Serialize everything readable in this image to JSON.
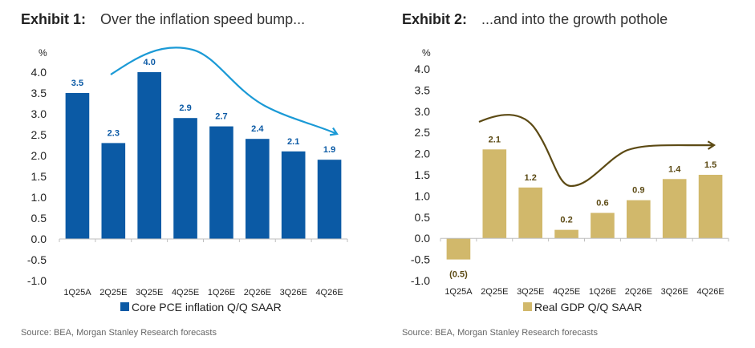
{
  "chart_data": [
    {
      "type": "bar",
      "exhibit": "Exhibit 1:",
      "title": "Over the inflation speed bump...",
      "ylabel": "%",
      "categories": [
        "1Q25A",
        "2Q25E",
        "3Q25E",
        "4Q25E",
        "1Q26E",
        "2Q26E",
        "3Q26E",
        "4Q26E"
      ],
      "series": [
        {
          "name": "Core PCE inflation Q/Q SAAR",
          "values": [
            3.5,
            2.3,
            4.0,
            2.9,
            2.7,
            2.4,
            2.1,
            1.9
          ],
          "color": "#0b5aa5"
        }
      ],
      "data_labels": [
        "3.5",
        "2.3",
        "4.0",
        "2.9",
        "2.7",
        "2.4",
        "2.1",
        "1.9"
      ],
      "label_color": "#0b5aa5",
      "ylim": [
        -1.0,
        4.0
      ],
      "yticks": [
        "4.0",
        "3.5",
        "3.0",
        "2.5",
        "2.0",
        "1.5",
        "1.0",
        "0.5",
        "0.0",
        "-0.5",
        "-1.0"
      ],
      "arrow_color": "#1b9ad6",
      "legend": "bottom",
      "grid": false,
      "source": "Source: BEA, Morgan Stanley Research forecasts"
    },
    {
      "type": "bar",
      "exhibit": "Exhibit 2:",
      "title": "...and into the growth pothole",
      "ylabel": "%",
      "categories": [
        "1Q25A",
        "2Q25E",
        "3Q25E",
        "4Q25E",
        "1Q26E",
        "2Q26E",
        "3Q26E",
        "4Q26E"
      ],
      "series": [
        {
          "name": "Real GDP Q/Q SAAR",
          "values": [
            -0.5,
            2.1,
            1.2,
            0.2,
            0.6,
            0.9,
            1.4,
            1.5
          ],
          "color": "#d1b86b"
        }
      ],
      "data_labels": [
        "(0.5)",
        "2.1",
        "1.2",
        "0.2",
        "0.6",
        "0.9",
        "1.4",
        "1.5"
      ],
      "label_color": "#5c4a14",
      "ylim": [
        -1.0,
        4.0
      ],
      "yticks": [
        "4.0",
        "3.5",
        "3.0",
        "2.5",
        "2.0",
        "1.5",
        "1.0",
        "0.5",
        "0.0",
        "-0.5",
        "-1.0"
      ],
      "arrow_color": "#5c4a14",
      "legend": "bottom",
      "grid": false,
      "source": "Source: BEA, Morgan Stanley Research forecasts"
    }
  ]
}
